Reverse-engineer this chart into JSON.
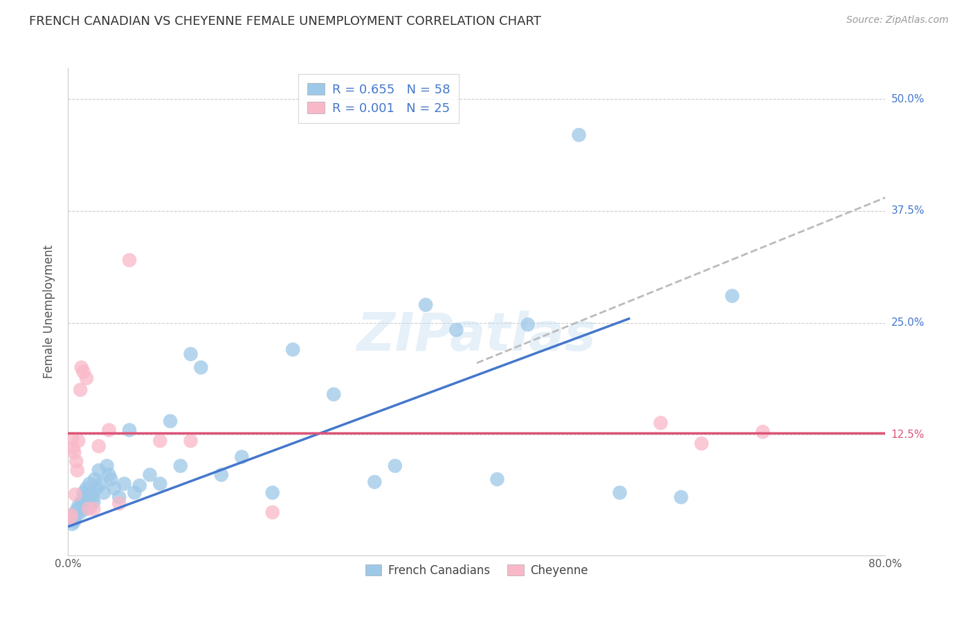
{
  "title": "FRENCH CANADIAN VS CHEYENNE FEMALE UNEMPLOYMENT CORRELATION CHART",
  "source": "Source: ZipAtlas.com",
  "ylabel": "Female Unemployment",
  "ytick_labels": [
    "12.5%",
    "25.0%",
    "37.5%",
    "50.0%"
  ],
  "ytick_values": [
    0.125,
    0.25,
    0.375,
    0.5
  ],
  "xlim": [
    0.0,
    0.8
  ],
  "ylim": [
    -0.01,
    0.535
  ],
  "color_blue": "#9dc8e8",
  "color_pink": "#f9b8c8",
  "color_blue_line": "#4477cc",
  "color_pink_line": "#dd5577",
  "color_dashed_line": "#bbbbbb",
  "watermark": "ZIPatlas",
  "french_canadians_x": [
    0.003,
    0.004,
    0.005,
    0.006,
    0.007,
    0.008,
    0.009,
    0.01,
    0.011,
    0.012,
    0.013,
    0.014,
    0.015,
    0.016,
    0.017,
    0.018,
    0.019,
    0.02,
    0.021,
    0.022,
    0.023,
    0.024,
    0.025,
    0.026,
    0.028,
    0.03,
    0.032,
    0.035,
    0.038,
    0.04,
    0.042,
    0.045,
    0.05,
    0.055,
    0.06,
    0.065,
    0.07,
    0.08,
    0.09,
    0.1,
    0.11,
    0.12,
    0.13,
    0.15,
    0.17,
    0.2,
    0.22,
    0.26,
    0.3,
    0.32,
    0.35,
    0.38,
    0.42,
    0.45,
    0.5,
    0.54,
    0.6,
    0.65
  ],
  "french_canadians_y": [
    0.03,
    0.025,
    0.035,
    0.028,
    0.032,
    0.04,
    0.038,
    0.045,
    0.042,
    0.038,
    0.05,
    0.048,
    0.06,
    0.055,
    0.042,
    0.065,
    0.045,
    0.052,
    0.07,
    0.045,
    0.06,
    0.055,
    0.05,
    0.075,
    0.065,
    0.085,
    0.07,
    0.06,
    0.09,
    0.08,
    0.075,
    0.065,
    0.055,
    0.07,
    0.13,
    0.06,
    0.068,
    0.08,
    0.07,
    0.14,
    0.09,
    0.215,
    0.2,
    0.08,
    0.1,
    0.06,
    0.22,
    0.17,
    0.072,
    0.09,
    0.27,
    0.242,
    0.075,
    0.248,
    0.46,
    0.06,
    0.055,
    0.28
  ],
  "cheyenne_x": [
    0.002,
    0.003,
    0.004,
    0.005,
    0.006,
    0.007,
    0.008,
    0.009,
    0.01,
    0.012,
    0.013,
    0.015,
    0.018,
    0.02,
    0.025,
    0.03,
    0.04,
    0.05,
    0.06,
    0.09,
    0.12,
    0.2,
    0.58,
    0.62,
    0.68
  ],
  "cheyenne_y": [
    0.032,
    0.035,
    0.12,
    0.11,
    0.105,
    0.058,
    0.095,
    0.085,
    0.118,
    0.175,
    0.2,
    0.195,
    0.188,
    0.042,
    0.042,
    0.112,
    0.13,
    0.048,
    0.32,
    0.118,
    0.118,
    0.038,
    0.138,
    0.115,
    0.128
  ],
  "blue_trendline_x": [
    0.0,
    0.55
  ],
  "blue_trendline_y": [
    0.022,
    0.255
  ],
  "dashed_trendline_x": [
    0.4,
    0.8
  ],
  "dashed_trendline_y": [
    0.205,
    0.39
  ],
  "pink_trendline_y": 0.127,
  "grid_yticks": [
    0.125,
    0.25,
    0.375,
    0.5
  ],
  "legend_label_blue": "French Canadians",
  "legend_label_pink": "Cheyenne",
  "legend_r1": "0.655",
  "legend_n1": "58",
  "legend_r2": "0.001",
  "legend_n2": "25"
}
